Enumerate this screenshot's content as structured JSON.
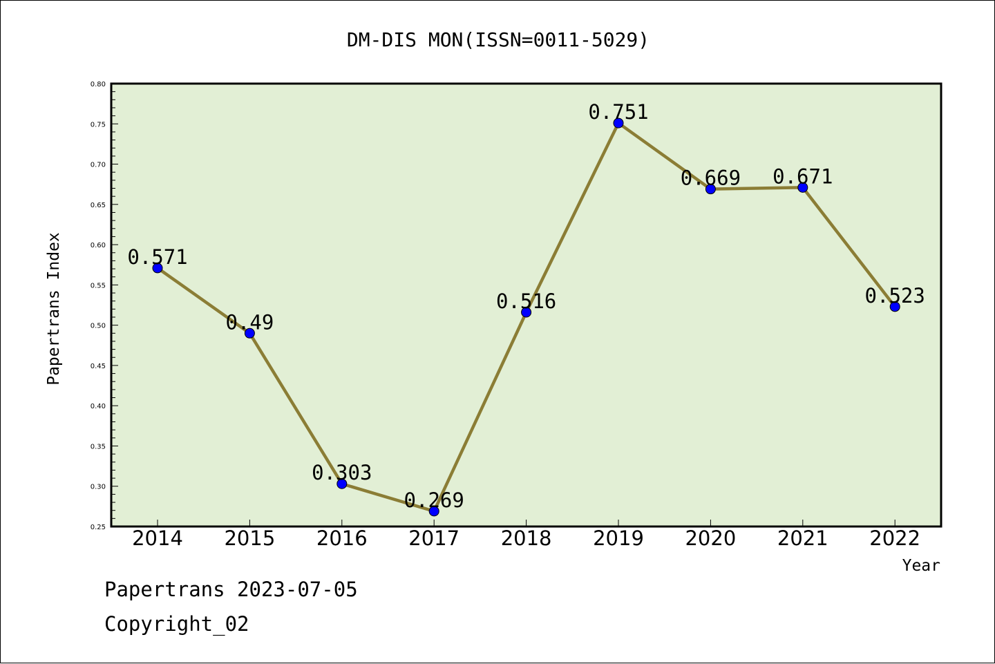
{
  "chart_data": {
    "type": "line",
    "title": "DM-DIS MON(ISSN=0011-5029)",
    "xlabel": "Year",
    "ylabel": "Papertrans Index",
    "categories": [
      "2014",
      "2015",
      "2016",
      "2017",
      "2018",
      "2019",
      "2020",
      "2021",
      "2022"
    ],
    "series": [
      {
        "values": [
          0.571,
          0.49,
          0.303,
          0.269,
          0.516,
          0.751,
          0.669,
          0.671,
          0.523
        ]
      }
    ],
    "data_labels": [
      "0.571",
      "0.49",
      "0.303",
      "0.269",
      "0.516",
      "0.751",
      "0.669",
      "0.671",
      "0.523"
    ],
    "ylim": [
      0.25,
      0.8
    ],
    "yticks": [
      "0.25",
      "0.30",
      "0.35",
      "0.40",
      "0.45",
      "0.50",
      "0.55",
      "0.60",
      "0.65",
      "0.70",
      "0.75",
      "0.80"
    ],
    "grid": false,
    "colors": {
      "plot_background": "#e2efd5",
      "line": "#8b7d35",
      "marker": "#0000ff"
    }
  },
  "footer": {
    "date_text": "Papertrans 2023-07-05",
    "copyright_text": "Copyright_02"
  }
}
